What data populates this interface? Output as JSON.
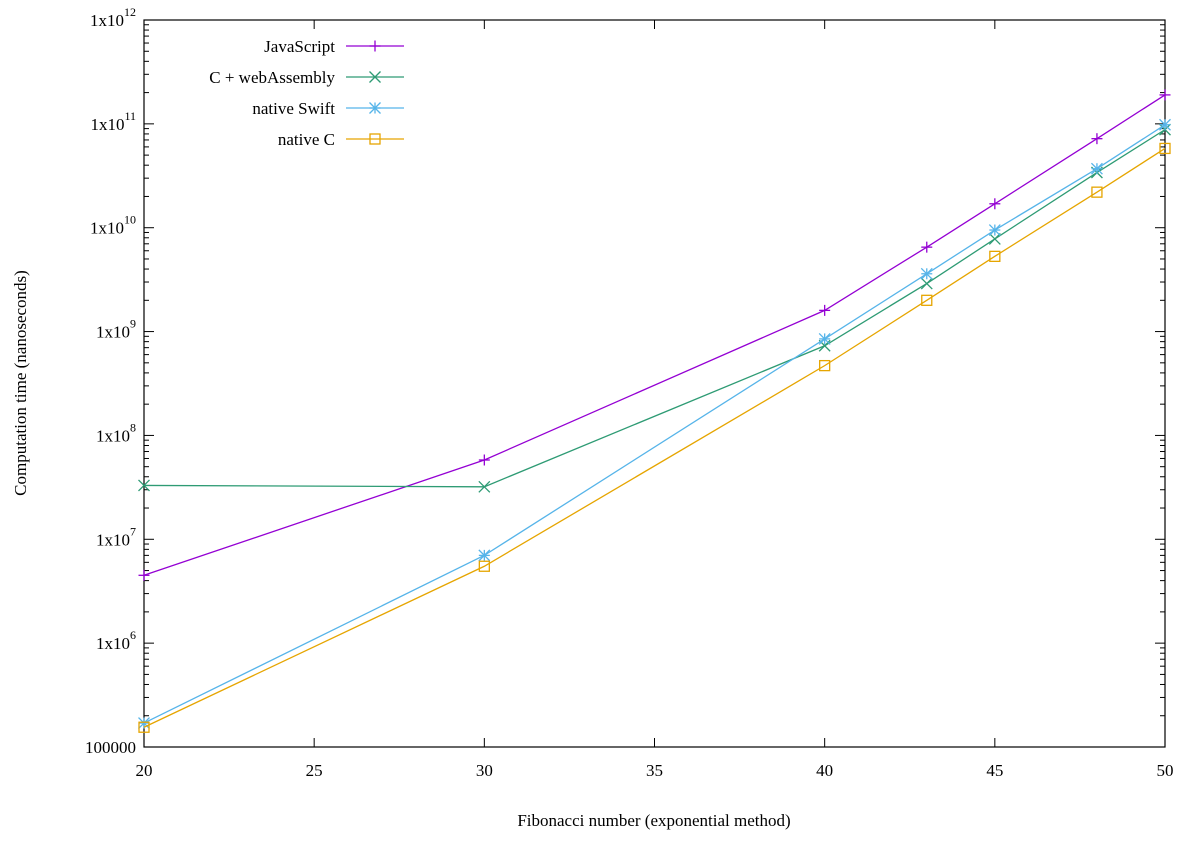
{
  "chart_data": {
    "type": "line",
    "xlabel": "Fibonacci number (exponential method)",
    "ylabel": "Computation time (nanoseconds)",
    "xlim": [
      20,
      50
    ],
    "ylim": [
      100000,
      1000000000000
    ],
    "yscale": "log",
    "grid": false,
    "legend_position": "top-left",
    "x_ticks": [
      "20",
      "25",
      "30",
      "35",
      "40",
      "45",
      "50"
    ],
    "y_ticks": [
      {
        "value": 100000,
        "base": "100000",
        "exp": ""
      },
      {
        "value": 1000000,
        "base": "1x10",
        "exp": "6"
      },
      {
        "value": 10000000,
        "base": "1x10",
        "exp": "7"
      },
      {
        "value": 100000000,
        "base": "1x10",
        "exp": "8"
      },
      {
        "value": 1000000000,
        "base": "1x10",
        "exp": "9"
      },
      {
        "value": 10000000000,
        "base": "1x10",
        "exp": "10"
      },
      {
        "value": 100000000000,
        "base": "1x10",
        "exp": "11"
      },
      {
        "value": 1000000000000,
        "base": "1x10",
        "exp": "12"
      }
    ],
    "series": [
      {
        "name": "JavaScript",
        "color": "#9400d3",
        "marker": "plus",
        "points": [
          [
            20,
            4500000
          ],
          [
            30,
            58000000
          ],
          [
            40,
            1600000000
          ],
          [
            43,
            6500000000
          ],
          [
            45,
            17000000000
          ],
          [
            48,
            72000000000
          ],
          [
            50,
            190000000000
          ]
        ]
      },
      {
        "name": "C + webAssembly",
        "color": "#2e9b74",
        "marker": "cross",
        "points": [
          [
            20,
            33000000
          ],
          [
            30,
            32000000
          ],
          [
            40,
            730000000
          ],
          [
            43,
            2900000000
          ],
          [
            45,
            7800000000
          ],
          [
            48,
            34000000000
          ],
          [
            50,
            88000000000
          ]
        ]
      },
      {
        "name": "native Swift",
        "color": "#56b4e9",
        "marker": "star",
        "points": [
          [
            20,
            170000
          ],
          [
            30,
            7000000
          ],
          [
            40,
            850000000
          ],
          [
            43,
            3600000000
          ],
          [
            45,
            9500000000
          ],
          [
            48,
            37000000000
          ],
          [
            50,
            98000000000
          ]
        ]
      },
      {
        "name": "native C",
        "color": "#e6a500",
        "marker": "square",
        "points": [
          [
            20,
            155000
          ],
          [
            30,
            5500000
          ],
          [
            40,
            470000000
          ],
          [
            43,
            2000000000
          ],
          [
            45,
            5300000000
          ],
          [
            48,
            22000000000
          ],
          [
            50,
            58000000000
          ]
        ]
      }
    ]
  }
}
